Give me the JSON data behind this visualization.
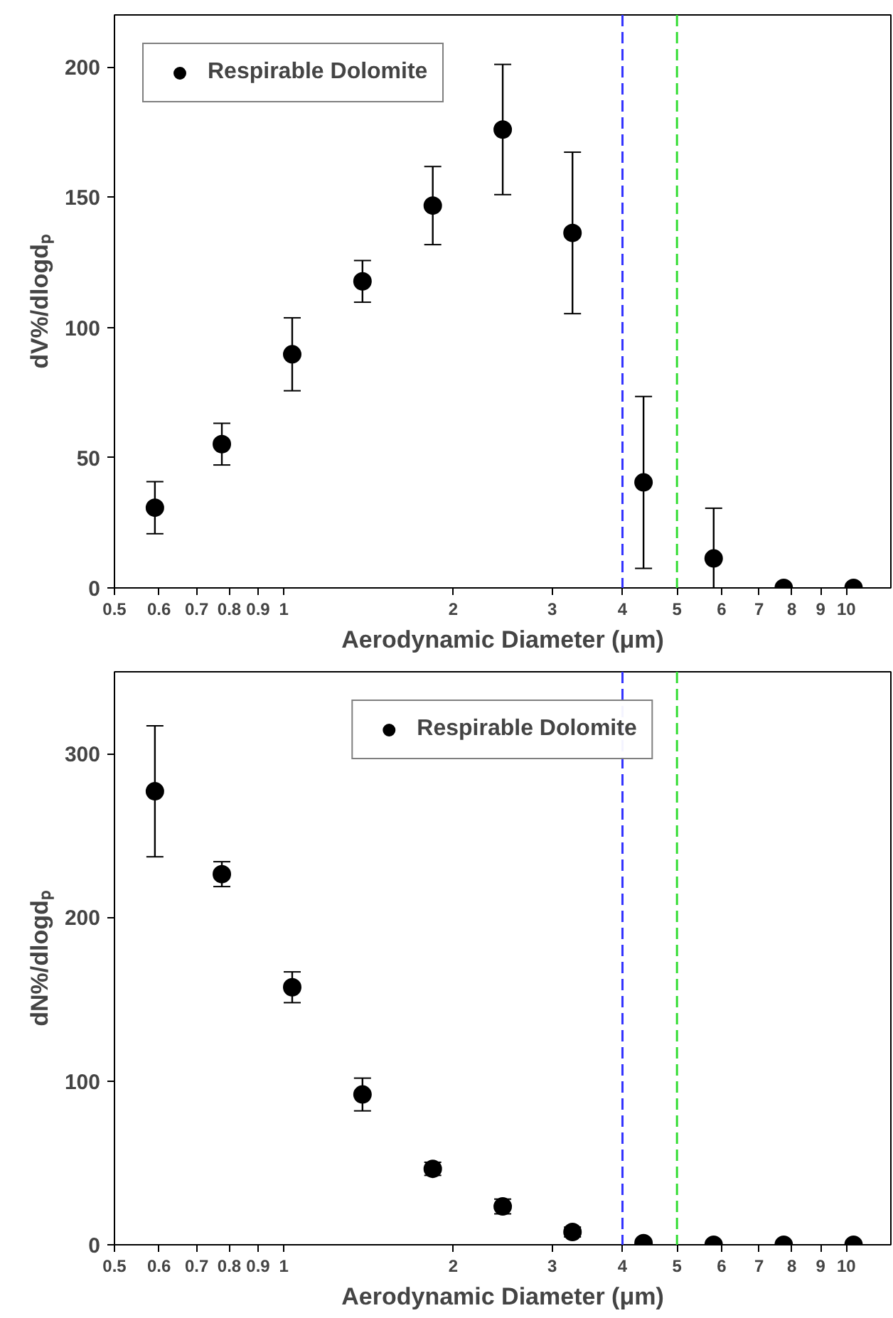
{
  "chart_data": [
    {
      "type": "scatter",
      "xlabel": "Aerodynamic Diameter (μm)",
      "ylabel": "dV%/dlogdₚ",
      "log": "x",
      "xlim": [
        0.5,
        12
      ],
      "xticks": [
        0.5,
        0.6,
        0.7,
        0.8,
        0.9,
        1,
        2,
        3,
        4,
        5,
        6,
        7,
        8,
        9,
        10
      ],
      "ylim": [
        0,
        220
      ],
      "yticks": [
        0,
        50,
        100,
        150,
        200
      ],
      "grid": false,
      "legend": "top left",
      "marker": "circle",
      "x": [
        0.59,
        0.776,
        1.035,
        1.38,
        1.84,
        2.45,
        3.26,
        4.36,
        5.81,
        7.74,
        10.3
      ],
      "series": [
        {
          "name": "Respirable Dolomite",
          "color": "#000000",
          "values": [
            30.8,
            55.2,
            89.7,
            117.7,
            146.8,
            176,
            136.3,
            40.5,
            11.3,
            0,
            0
          ],
          "errors": [
            10,
            8,
            14,
            8,
            15,
            25,
            31,
            33,
            [
              0,
              30.6
            ],
            null,
            null
          ]
        }
      ],
      "ref_lines": [
        {
          "axis": "x",
          "value": 4,
          "color": "#3333ff",
          "line_style": "dashed"
        },
        {
          "axis": "x",
          "value": 5,
          "color": "#33dd33",
          "line_style": "dashed"
        }
      ]
    },
    {
      "type": "scatter",
      "xlabel": "Aerodynamic Diameter (μm)",
      "ylabel": "dN%/dlogdₚ",
      "log": "x",
      "xlim": [
        0.5,
        12
      ],
      "xticks": [
        0.5,
        0.6,
        0.7,
        0.8,
        0.9,
        1,
        2,
        3,
        4,
        5,
        6,
        7,
        8,
        9,
        10
      ],
      "ylim": [
        0,
        350
      ],
      "yticks": [
        0,
        100,
        200,
        300
      ],
      "grid": false,
      "legend": "top",
      "marker": "circle",
      "x": [
        0.59,
        0.776,
        1.035,
        1.38,
        1.84,
        2.45,
        3.26,
        4.36,
        5.81,
        7.74,
        10.3
      ],
      "series": [
        {
          "name": "Respirable Dolomite",
          "color": "#000000",
          "values": [
            277,
            226.4,
            157.3,
            91.8,
            46.4,
            23.4,
            7.8,
            1,
            0,
            0,
            0
          ],
          "errors": [
            40,
            7.6,
            9.4,
            10,
            4,
            4.5,
            3,
            null,
            null,
            null,
            null
          ]
        }
      ],
      "ref_lines": [
        {
          "axis": "x",
          "value": 4,
          "color": "#3333ff",
          "line_style": "dashed"
        },
        {
          "axis": "x",
          "value": 5,
          "color": "#33dd33",
          "line_style": "dashed"
        }
      ]
    }
  ]
}
